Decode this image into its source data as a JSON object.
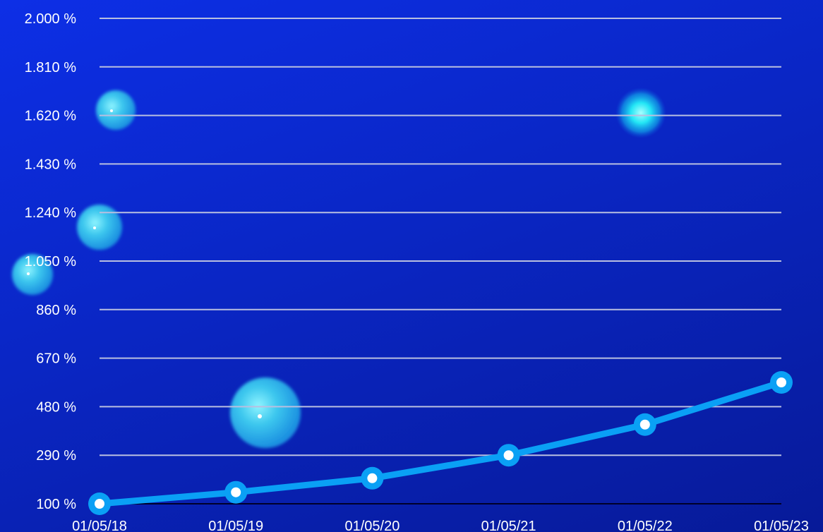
{
  "chart_data": {
    "type": "line",
    "title": "",
    "xlabel": "",
    "ylabel": "",
    "categories": [
      "01/05/18",
      "01/05/19",
      "01/05/20",
      "01/05/21",
      "01/05/22",
      "01/05/23"
    ],
    "series": [
      {
        "values": [
          100,
          145,
          200,
          290,
          410,
          575
        ]
      }
    ],
    "y_ticks": [
      "100 %",
      "290 %",
      "480 %",
      "670 %",
      "860 %",
      "1.050 %",
      "1.240 %",
      "1.430 %",
      "1.620 %",
      "1.810 %",
      "2.000 %"
    ],
    "ylim": [
      100,
      2000
    ],
    "grid": true,
    "legend": "none",
    "colors": {
      "line": "#0aa0f5",
      "marker_fill": "#ffffff",
      "gridline": "#b9bfe0",
      "baseline": "#00002a",
      "background_top": "#0d2fe6",
      "background_bottom": "#071a98",
      "text": "#ffffff"
    },
    "decoration": "glowing bubbles"
  }
}
